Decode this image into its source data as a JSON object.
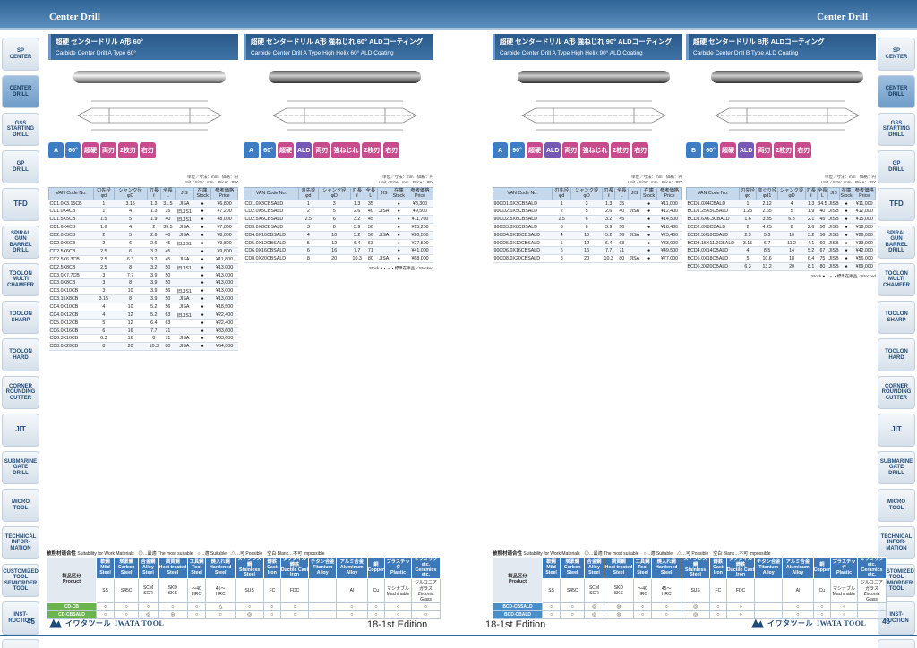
{
  "header": {
    "left": "Center Drill",
    "right": "Center Drill"
  },
  "sidebar": [
    {
      "label": "SP\nCENTER",
      "active": false,
      "big": false
    },
    {
      "label": "CENTER\nDRILL",
      "active": true,
      "big": false
    },
    {
      "label": "GSS\nSTARTING\nDRILL",
      "active": false,
      "big": false
    },
    {
      "label": "GP\nDRILL",
      "active": false,
      "big": false
    },
    {
      "label": "TFD",
      "active": false,
      "big": true
    },
    {
      "label": "SPIRAL\nGUN\nBARREL\nDRILL",
      "active": false,
      "big": false
    },
    {
      "label": "TOOLON\nMULTI\nCHAMFER",
      "active": false,
      "big": false
    },
    {
      "label": "TOOLON\nSHARP",
      "active": false,
      "big": false
    },
    {
      "label": "TOOLON\nHARD",
      "active": false,
      "big": false
    },
    {
      "label": "CORNER\nROUNDING\nCUTTER",
      "active": false,
      "big": false
    },
    {
      "label": "JIT",
      "active": false,
      "big": true
    },
    {
      "label": "SUBMARINE\nGATE\nDRILL",
      "active": false,
      "big": false
    },
    {
      "label": "MICRO\nTOOL",
      "active": false,
      "big": false
    },
    {
      "label": "TECHNICAL\nINFOR-\nMATION",
      "active": false,
      "big": false
    },
    {
      "label": "CUSTOMIZED\nTOOL\nSEMIORDER\nTOOL",
      "active": false,
      "big": false
    },
    {
      "label": "INST-\nRUCTION",
      "active": false,
      "big": false
    },
    {
      "label": "COMPANY\nPROFILE",
      "active": false,
      "big": false
    }
  ],
  "columns": [
    {
      "title_jp": "超硬 センタードリル A形 60°",
      "title_en": "Carbide Center Drill  A Type 60°",
      "ald": false,
      "icons": [
        {
          "t": "A",
          "c": "a"
        },
        {
          "t": "60°",
          "c": "a"
        },
        {
          "t": "超硬",
          "c": "p"
        },
        {
          "t": "両刃",
          "c": "p"
        },
        {
          "t": "2枚刃",
          "c": "p"
        },
        {
          "t": "右刃",
          "c": "p"
        }
      ],
      "unit": "単位／寸法：mm　価格：円\nUnit／Size：mm　Price：JPY",
      "headers": [
        "VAN Code No.",
        "刃先径\nφd",
        "シャンク径\nφD",
        "刃長\nℓ",
        "全長\nL",
        "JIS",
        "在庫\nStock",
        "参考価格\nPrice"
      ],
      "rows": [
        [
          "CD1.0X3.15CB",
          "1",
          "3.15",
          "1.3",
          "31.5",
          "JISA",
          "●",
          "¥6,800"
        ],
        [
          "CD1.0X4CB",
          "1",
          "4",
          "1.3",
          "35",
          "旧JIS1",
          "●",
          "¥7,200"
        ],
        [
          "CD1.5X5CB",
          "1.5",
          "5",
          "1.9",
          "40",
          "旧JIS1",
          "●",
          "¥8,000"
        ],
        [
          "CD1.6X4CB",
          "1.6",
          "4",
          "2",
          "35.5",
          "JISA",
          "●",
          "¥7,800"
        ],
        [
          "CD2.0X5CB",
          "2",
          "5",
          "2.6",
          "40",
          "JISA",
          "●",
          "¥8,000"
        ],
        [
          "CD2.0X6CB",
          "2",
          "6",
          "2.6",
          "45",
          "旧JIS1",
          "●",
          "¥9,800"
        ],
        [
          "CD2.5X6CB",
          "2.5",
          "6",
          "3.2",
          "45",
          "",
          "●",
          "¥9,800"
        ],
        [
          "CD2.5X6.3CB",
          "2.5",
          "6.3",
          "3.2",
          "45",
          "JISA",
          "●",
          "¥11,800"
        ],
        [
          "CD2.5X8CB",
          "2.5",
          "8",
          "3.2",
          "50",
          "旧JIS1",
          "●",
          "¥13,000"
        ],
        [
          "CD3.0X7.7CB",
          "3",
          "7.7",
          "3.9",
          "50",
          "",
          "●",
          "¥13,000"
        ],
        [
          "CD3.0X8CB",
          "3",
          "8",
          "3.9",
          "50",
          "",
          "●",
          "¥13,000"
        ],
        [
          "CD3.0X10CB",
          "3",
          "10",
          "3.9",
          "56",
          "旧JIS1",
          "●",
          "¥13,000"
        ],
        [
          "CD3.15X8CB",
          "3.15",
          "8",
          "3.9",
          "50",
          "JISA",
          "●",
          "¥13,000"
        ],
        [
          "CD4.0X10CB",
          "4",
          "10",
          "5.2",
          "56",
          "JISA",
          "●",
          "¥18,500"
        ],
        [
          "CD4.0X12CB",
          "4",
          "12",
          "5.2",
          "63",
          "旧JIS1",
          "●",
          "¥22,400"
        ],
        [
          "CD5.0X12CB",
          "5",
          "12",
          "6.4",
          "63",
          "",
          "●",
          "¥22,400"
        ],
        [
          "CD6.0X16CB",
          "6",
          "16",
          "7.7",
          "71",
          "",
          "●",
          "¥33,600"
        ],
        [
          "CD6.3X16CB",
          "6.3",
          "16",
          "8",
          "71",
          "JISA",
          "●",
          "¥33,600"
        ],
        [
          "CD8.0X20CB",
          "8",
          "20",
          "10.3",
          "80",
          "JISA",
          "●",
          "¥54,000"
        ]
      ],
      "stock_note": ""
    },
    {
      "title_jp": "超硬 センタードリル A形 強ねじれ 60° ALDコーティング",
      "title_en": "Carbide Center Drill  A Type  High Helix 60° ALD Coating",
      "ald": true,
      "icons": [
        {
          "t": "A",
          "c": "a"
        },
        {
          "t": "60°",
          "c": "a"
        },
        {
          "t": "超硬",
          "c": "p"
        },
        {
          "t": "ALD",
          "c": "v"
        },
        {
          "t": "両刃",
          "c": "p"
        },
        {
          "t": "強ねじれ",
          "c": "p"
        },
        {
          "t": "2枚刃",
          "c": "p"
        },
        {
          "t": "右刃",
          "c": "p"
        }
      ],
      "unit": "単位／寸法：mm　価格：円\nUnit／Size：mm　Price：JPY",
      "headers": [
        "VAN Code No.",
        "刃先径\nφd",
        "シャンク径\nφD",
        "刃長\nℓ",
        "全長\nL",
        "JIS",
        "在庫\nStock",
        "参考価格\nPrice"
      ],
      "rows": [
        [
          "CD1.0X3CBSALD",
          "1",
          "3",
          "1.3",
          "35",
          "",
          "●",
          "¥8,300"
        ],
        [
          "CD2.0X5CBSALD",
          "2",
          "5",
          "2.6",
          "40",
          "JISA",
          "●",
          "¥9,500"
        ],
        [
          "CD2.5X6CBSALD",
          "2.5",
          "6",
          "3.2",
          "45",
          "",
          "●",
          "¥11,700"
        ],
        [
          "CD3.0X8CBSALD",
          "3",
          "8",
          "3.9",
          "50",
          "",
          "●",
          "¥15,200"
        ],
        [
          "CD4.0X10CBSALD",
          "4",
          "10",
          "5.2",
          "56",
          "JISA",
          "●",
          "¥20,500"
        ],
        [
          "CD5.0X12CBSALD",
          "5",
          "12",
          "6.4",
          "63",
          "",
          "●",
          "¥27,500"
        ],
        [
          "CD6.0X16CBSALD",
          "6",
          "16",
          "7.7",
          "71",
          "",
          "●",
          "¥41,000"
        ],
        [
          "CD8.0X20CBSALD",
          "8",
          "20",
          "10.3",
          "80",
          "JISA",
          "●",
          "¥68,000"
        ]
      ],
      "stock_note": "Stock ●・・・標準在庫品／Stocked"
    },
    {
      "title_jp": "超硬 センタードリル A形 強ねじれ 90° ALDコーティング",
      "title_en": "Carbide Center Drill  A Type  High Helix 90° ALD Coating",
      "ald": true,
      "icons": [
        {
          "t": "A",
          "c": "a"
        },
        {
          "t": "90°",
          "c": "a"
        },
        {
          "t": "超硬",
          "c": "p"
        },
        {
          "t": "ALD",
          "c": "v"
        },
        {
          "t": "両刃",
          "c": "p"
        },
        {
          "t": "強ねじれ",
          "c": "p"
        },
        {
          "t": "2枚刃",
          "c": "p"
        },
        {
          "t": "右刃",
          "c": "p"
        }
      ],
      "unit": "単位／寸法：mm　価格：円\nUnit／Size：mm　Price：JPY",
      "headers": [
        "VAN Code No.",
        "刃先径\nφd",
        "シャンク径\nφD",
        "刃長\nℓ",
        "全長\nL",
        "JIS",
        "在庫\nStock",
        "参考価格\nPrice"
      ],
      "rows": [
        [
          "90CD1.0X3CBSALD",
          "1",
          "3",
          "1.3",
          "35",
          "",
          "●",
          "¥11,000"
        ],
        [
          "90CD2.0X5CBSALD",
          "2",
          "5",
          "2.6",
          "40",
          "JISA",
          "●",
          "¥12,400"
        ],
        [
          "90CD2.5X6CBSALD",
          "2.5",
          "6",
          "3.2",
          "45",
          "",
          "●",
          "¥14,500"
        ],
        [
          "90CD3.0X8CBSALD",
          "3",
          "8",
          "3.9",
          "50",
          "",
          "●",
          "¥18,400"
        ],
        [
          "90CD4.0X10CBSALD",
          "4",
          "10",
          "5.2",
          "56",
          "JISA",
          "●",
          "¥25,400"
        ],
        [
          "90CD5.0X12CBSALD",
          "5",
          "12",
          "6.4",
          "63",
          "",
          "●",
          "¥33,000"
        ],
        [
          "90CD6.0X16CBSALD",
          "6",
          "16",
          "7.7",
          "71",
          "",
          "●",
          "¥49,500"
        ],
        [
          "90CD8.0X20CBSALD",
          "8",
          "20",
          "10.3",
          "80",
          "JISA",
          "●",
          "¥77,000"
        ]
      ],
      "stock_note": ""
    },
    {
      "title_jp": "超硬 センタードリル B形 ALDコーティング",
      "title_en": "Carbide Center Drill  B Type  ALD Coating",
      "ald": true,
      "icons": [
        {
          "t": "B",
          "c": "a"
        },
        {
          "t": "60°",
          "c": "a"
        },
        {
          "t": "超硬",
          "c": "p"
        },
        {
          "t": "ALD",
          "c": "v"
        },
        {
          "t": "両刃",
          "c": "p"
        },
        {
          "t": "2枚刃",
          "c": "p"
        },
        {
          "t": "右刃",
          "c": "p"
        }
      ],
      "unit": "単位／寸法：mm　価格：円\nUnit／Size：mm　Price：JPY",
      "headers": [
        "VAN Code No.",
        "刃先径\nφd",
        "座ぐり径\nφd1",
        "シャンク径\nφD",
        "刃長\nℓ",
        "全長\nL",
        "JIS",
        "在庫\nStock",
        "参考価格\nPrice"
      ],
      "rows": [
        [
          "BCD1.0X4CBALD",
          "1",
          "2.12",
          "4",
          "1.3",
          "34.5",
          "JISB",
          "●",
          "¥11,000"
        ],
        [
          "BCD1.25X5CBALD",
          "1.25",
          "2.65",
          "5",
          "1.9",
          "40",
          "JISB",
          "●",
          "¥12,000"
        ],
        [
          "BCD1.6X6.3CBALD",
          "1.6",
          "3.35",
          "6.3",
          "2.1",
          "45",
          "JISB",
          "●",
          "¥15,000"
        ],
        [
          "BCD2.0X8CBALD",
          "2",
          "4.25",
          "8",
          "2.6",
          "50",
          "JISB",
          "●",
          "¥19,000"
        ],
        [
          "BCD2.5X10CBALD",
          "2.5",
          "5.3",
          "10",
          "3.2",
          "56",
          "JISB",
          "●",
          "¥26,000"
        ],
        [
          "BCD3.15X11.2CBALD",
          "3.15",
          "6.7",
          "11.2",
          "4.1",
          "60",
          "JISB",
          "●",
          "¥33,000"
        ],
        [
          "BCD4.0X14CBALD",
          "4",
          "8.5",
          "14",
          "5.2",
          "67",
          "JISB",
          "●",
          "¥42,000"
        ],
        [
          "BCD5.0X18CBALD",
          "5",
          "10.6",
          "18",
          "6.4",
          "75",
          "JISB",
          "●",
          "¥56,000"
        ],
        [
          "BCD6.3X20CBALD",
          "6.3",
          "13.2",
          "20",
          "8.1",
          "80",
          "JISB",
          "●",
          "¥69,000"
        ]
      ],
      "stock_note": "Stock ●・・・標準在庫品／Stocked"
    }
  ],
  "materials": {
    "title": "被削材適合性",
    "legend": "Suitability for Work Materials　◎…最適 The most suitable　○…適 Suitable　△…可 Possible　空白 Blank…不可 Impossible",
    "product_label": "製品区分\nProduct",
    "groups": [
      "軟鋼\nMild Steel",
      "炭素鋼\nCarbon Steel",
      "合金鋼\nAlloy Steel",
      "調質鋼\nHeat treated Steel",
      "工具鋼\nTool Steel",
      "焼入れ鋼\nHardened Steel",
      "ステンレス鋼\nStainless Steel",
      "鋳鉄\nCast Iron",
      "ダクタイル鋳鉄\nDuctile Cast Iron",
      "チタン合金\nTitanium Alloy",
      "アルミ合金\nAluminum Alloy",
      "銅\nCopper",
      "プラスチック\nPlastic",
      "セラミック etc.\nCeramics etc."
    ],
    "sub_left": [
      "SS",
      "S45C",
      "SCM\nSCR",
      "SKD\nSKS",
      "～40\nHRC",
      "45～\nHRC",
      "SUS",
      "FC",
      "FDC",
      "",
      "Al",
      "Cu",
      "マシナブル\nMachinable",
      "ジルコニア\nガラス\nZirconia\nGlass"
    ],
    "left_rows": [
      {
        "name": "CD-CB",
        "marks": [
          "○",
          "○",
          "○",
          "○",
          "○",
          "△",
          "○",
          "○",
          "○",
          "",
          "○",
          "○",
          "○",
          "○"
        ]
      },
      {
        "name": "CD-CBSALD",
        "marks": [
          "○",
          "○",
          "◎",
          "◎",
          "○",
          "○",
          "◎",
          "○",
          "○",
          "",
          "○",
          "○",
          "○",
          "○"
        ]
      }
    ],
    "right_rows": [
      {
        "name": "BCD-CBSALD",
        "marks": [
          "○",
          "○",
          "◎",
          "◎",
          "○",
          "○",
          "◎",
          "○",
          "○",
          "",
          "○",
          "○",
          "○",
          ""
        ]
      },
      {
        "name": "BCD-CBALD",
        "marks": [
          "○",
          "○",
          "◎",
          "◎",
          "○",
          "○",
          "◎",
          "○",
          "○",
          "",
          "○",
          "○",
          "○",
          ""
        ]
      }
    ]
  },
  "footer": {
    "page_left": "45",
    "page_right": "46",
    "edition": "18-1st  Edition",
    "logo_text": "IWATA TOOL",
    "logo_jp": "イワタツール"
  }
}
